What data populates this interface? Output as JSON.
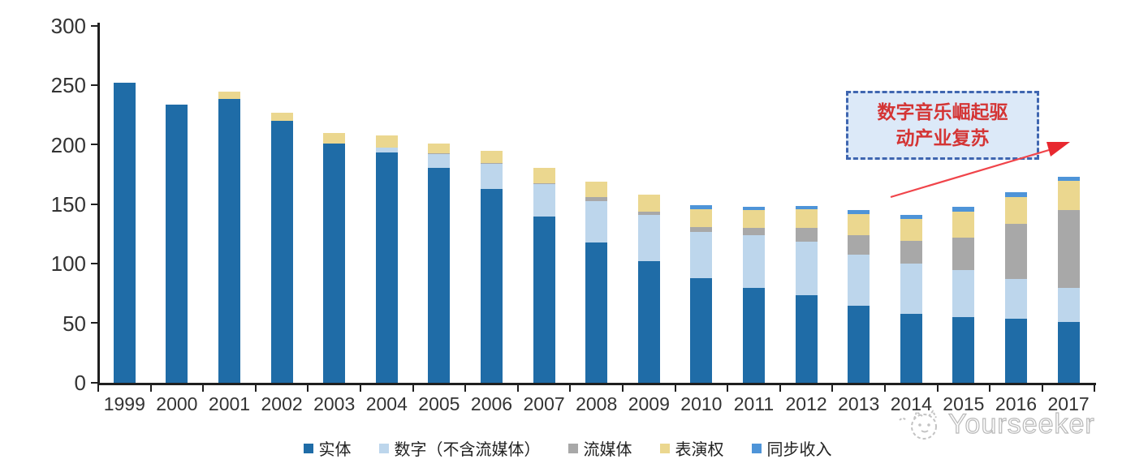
{
  "chart_data": {
    "type": "bar",
    "stacked": true,
    "categories": [
      "1999",
      "2000",
      "2001",
      "2002",
      "2003",
      "2004",
      "2005",
      "2006",
      "2007",
      "2008",
      "2009",
      "2010",
      "2011",
      "2012",
      "2013",
      "2014",
      "2015",
      "2016",
      "2017"
    ],
    "series": [
      {
        "name": "实体",
        "color": "#1f6ca7",
        "values": [
          252,
          234,
          239,
          220,
          201,
          194,
          181,
          163,
          140,
          118,
          102,
          88,
          80,
          74,
          65,
          58,
          55,
          54,
          51
        ]
      },
      {
        "name": "数字（不含流媒体）",
        "color": "#bdd6ec",
        "values": [
          0,
          0,
          0,
          0,
          0,
          4,
          11,
          21,
          27,
          35,
          39,
          39,
          44,
          45,
          43,
          42,
          40,
          33,
          29
        ]
      },
      {
        "name": "流媒体",
        "color": "#a8a8a8",
        "values": [
          0,
          0,
          0,
          0,
          0,
          0,
          1,
          1,
          1,
          3,
          3,
          4,
          6,
          11,
          16,
          19,
          27,
          47,
          65
        ]
      },
      {
        "name": "表演权",
        "color": "#ebd78f",
        "values": [
          0,
          0,
          6,
          7,
          9,
          10,
          8,
          10,
          13,
          13,
          14,
          15,
          15,
          16,
          18,
          19,
          22,
          22,
          25
        ]
      },
      {
        "name": "同步收入",
        "color": "#4e94d8",
        "values": [
          0,
          0,
          0,
          0,
          0,
          0,
          0,
          0,
          0,
          0,
          0,
          3,
          3,
          3,
          3,
          3,
          4,
          4,
          3
        ]
      }
    ],
    "title": "",
    "xlabel": "",
    "ylabel": "",
    "ylim": [
      0,
      300
    ],
    "y_ticks": [
      0,
      50,
      100,
      150,
      200,
      250,
      300
    ],
    "grid": false,
    "legend_position": "bottom"
  },
  "annotation": {
    "line1": "数字音乐崛起驱",
    "line2": "动产业复苏",
    "box_bg": "#dce9f8",
    "box_border": "#3f66b0",
    "text_color": "#d43535",
    "arrow_color": "#f0444a"
  },
  "watermark": {
    "text": "Yourseeker"
  },
  "colors": {
    "axis": "#1f1f1f",
    "tick_label": "#333333",
    "background": "#ffffff"
  }
}
